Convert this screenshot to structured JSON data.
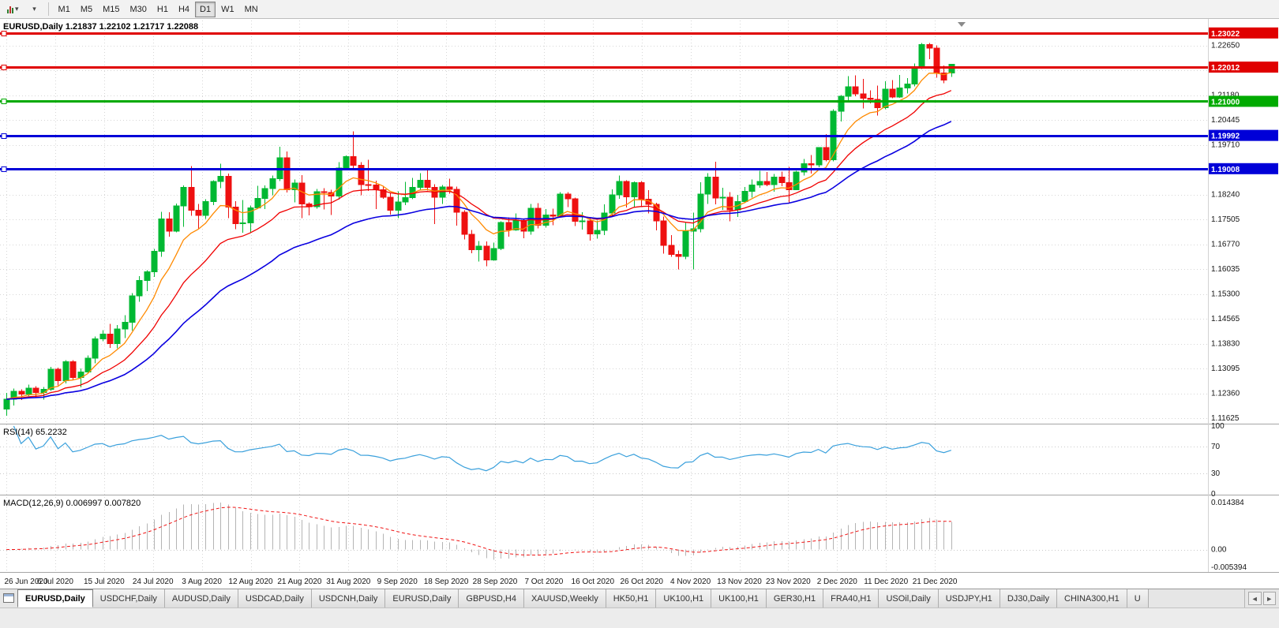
{
  "icons": {
    "dropdown_caret": "▾",
    "tab_scroll_left": "◄",
    "tab_scroll_right": "►",
    "shift_marker": "▼"
  },
  "toolbar": {
    "timeframes": [
      "M1",
      "M5",
      "M15",
      "M30",
      "H1",
      "H4",
      "D1",
      "W1",
      "MN"
    ],
    "active_timeframe": "D1"
  },
  "chart": {
    "title": "EURUSD,Daily 1.21837 1.22102 1.21717 1.22088"
  },
  "chart_data": {
    "type": "candlestick",
    "symbol": "EURUSD",
    "timeframe": "Daily",
    "ohlc_display": {
      "open": "1.21837",
      "high": "1.22102",
      "low": "1.21717",
      "close": "1.22088"
    },
    "y_axis_labels": [
      "1.22650",
      "1.21915",
      "1.21180",
      "1.20445",
      "1.19710",
      "1.18975",
      "1.18240",
      "1.17505",
      "1.16770",
      "1.16035",
      "1.15300",
      "1.14565",
      "1.13830",
      "1.13095",
      "1.12360",
      "1.11625"
    ],
    "x_labels": [
      "26 Jun 2020",
      "6 Jul 2020",
      "15 Jul 2020",
      "24 Jul 2020",
      "3 Aug 2020",
      "12 Aug 2020",
      "21 Aug 2020",
      "31 Aug 2020",
      "9 Sep 2020",
      "18 Sep 2020",
      "28 Sep 2020",
      "7 Oct 2020",
      "16 Oct 2020",
      "26 Oct 2020",
      "4 Nov 2020",
      "13 Nov 2020",
      "23 Nov 2020",
      "2 Dec 2020",
      "11 Dec 2020",
      "21 Dec 2020"
    ],
    "colors": {
      "bull": "#00b832",
      "bear": "#ee1010",
      "grid": "#d6d6d6",
      "axis_text": "#151515"
    },
    "hlines": [
      {
        "price": 1.23022,
        "label": "1.23022",
        "color": "#e00000"
      },
      {
        "price": 1.22012,
        "label": "1.22012",
        "color": "#e00000"
      },
      {
        "price": 1.21,
        "label": "1.21000",
        "color": "#00aa00"
      },
      {
        "price": 1.19992,
        "label": "1.19992",
        "color": "#0000d8"
      },
      {
        "price": 1.19008,
        "label": "1.19008",
        "color": "#0000d8"
      }
    ],
    "indicators": {
      "moving_averages": [
        {
          "name": "ma-fast",
          "type": "ema",
          "period": 8,
          "color": "#ff8a00"
        },
        {
          "name": "ma-mid",
          "type": "ema",
          "period": 17,
          "color": "#f00000"
        },
        {
          "name": "ma-slow",
          "type": "ema",
          "period": 34,
          "color": "#0a00e0"
        }
      ],
      "rsi": {
        "label": "RSI(14) 65.2232",
        "period": 14,
        "current": 65.2232,
        "color": "#3aa0dc",
        "axis_labels": [
          "100",
          "70",
          "30",
          "0"
        ],
        "axis_values": [
          100,
          70,
          30,
          0
        ],
        "level_lines": [
          70,
          30
        ]
      },
      "macd": {
        "label": "MACD(12,26,9) 0.006997 0.007820",
        "fast": 12,
        "slow": 26,
        "signal": 9,
        "current_macd": 0.006997,
        "current_signal": 0.00782,
        "scale_max": 0.014384,
        "scale_min": -0.005394,
        "hist_color": "#b4b4b4",
        "signal_color": "#f01414",
        "axis_labels": [
          "0.014384",
          "0.00",
          "-0.005394"
        ],
        "axis_values": [
          0.014384,
          0,
          -0.005394
        ]
      }
    },
    "candles": [
      [
        1.119,
        1.1238,
        1.117,
        1.1219
      ],
      [
        1.1219,
        1.125,
        1.12,
        1.1242
      ],
      [
        1.1242,
        1.1248,
        1.1217,
        1.1234
      ],
      [
        1.1234,
        1.1262,
        1.1228,
        1.1252
      ],
      [
        1.1252,
        1.1258,
        1.1222,
        1.1239
      ],
      [
        1.1239,
        1.1255,
        1.1218,
        1.1248
      ],
      [
        1.1248,
        1.1315,
        1.1243,
        1.1308
      ],
      [
        1.1308,
        1.1312,
        1.126,
        1.1274
      ],
      [
        1.1274,
        1.1334,
        1.1266,
        1.133
      ],
      [
        1.133,
        1.1335,
        1.1277,
        1.1283
      ],
      [
        1.1283,
        1.131,
        1.1254,
        1.13
      ],
      [
        1.13,
        1.1348,
        1.1296,
        1.134
      ],
      [
        1.134,
        1.1405,
        1.1325,
        1.1397
      ],
      [
        1.1397,
        1.1423,
        1.139,
        1.1411
      ],
      [
        1.1411,
        1.1442,
        1.1371,
        1.1384
      ],
      [
        1.1384,
        1.1438,
        1.137,
        1.1427
      ],
      [
        1.1427,
        1.1468,
        1.14,
        1.1447
      ],
      [
        1.1447,
        1.1533,
        1.1422,
        1.1525
      ],
      [
        1.1525,
        1.1583,
        1.1507,
        1.157
      ],
      [
        1.157,
        1.1601,
        1.1539,
        1.1596
      ],
      [
        1.1596,
        1.1664,
        1.1581,
        1.1656
      ],
      [
        1.1656,
        1.1773,
        1.164,
        1.1752
      ],
      [
        1.1752,
        1.1772,
        1.17,
        1.1716
      ],
      [
        1.1716,
        1.1798,
        1.1712,
        1.1791
      ],
      [
        1.1791,
        1.1851,
        1.1729,
        1.1846
      ],
      [
        1.1846,
        1.1909,
        1.1762,
        1.1778
      ],
      [
        1.1778,
        1.1797,
        1.1723,
        1.1763
      ],
      [
        1.1763,
        1.181,
        1.1752,
        1.1803
      ],
      [
        1.1803,
        1.1866,
        1.1793,
        1.1863
      ],
      [
        1.1863,
        1.1916,
        1.1843,
        1.1878
      ],
      [
        1.1878,
        1.1886,
        1.1754,
        1.1787
      ],
      [
        1.1787,
        1.1805,
        1.1722,
        1.1738
      ],
      [
        1.1738,
        1.1808,
        1.1711,
        1.174
      ],
      [
        1.174,
        1.1792,
        1.171,
        1.1785
      ],
      [
        1.1785,
        1.185,
        1.1782,
        1.1813
      ],
      [
        1.1813,
        1.1851,
        1.1781,
        1.1842
      ],
      [
        1.1842,
        1.188,
        1.1822,
        1.1871
      ],
      [
        1.1871,
        1.1966,
        1.1864,
        1.1933
      ],
      [
        1.1933,
        1.1952,
        1.183,
        1.1839
      ],
      [
        1.1839,
        1.1869,
        1.1801,
        1.1858
      ],
      [
        1.1858,
        1.1882,
        1.1755,
        1.1796
      ],
      [
        1.1796,
        1.1801,
        1.1763,
        1.1788
      ],
      [
        1.1788,
        1.1841,
        1.1783,
        1.1833
      ],
      [
        1.1833,
        1.1843,
        1.178,
        1.183
      ],
      [
        1.183,
        1.1839,
        1.1764,
        1.182
      ],
      [
        1.182,
        1.192,
        1.1809,
        1.1903
      ],
      [
        1.1903,
        1.194,
        1.1897,
        1.1936
      ],
      [
        1.1936,
        1.2011,
        1.1898,
        1.1911
      ],
      [
        1.1911,
        1.192,
        1.1822,
        1.1854
      ],
      [
        1.1854,
        1.1927,
        1.1835,
        1.1852
      ],
      [
        1.1852,
        1.1865,
        1.1781,
        1.1838
      ],
      [
        1.1838,
        1.185,
        1.1812,
        1.1816
      ],
      [
        1.1816,
        1.1828,
        1.1765,
        1.1778
      ],
      [
        1.1778,
        1.1834,
        1.1754,
        1.1802
      ],
      [
        1.1802,
        1.1862,
        1.1793,
        1.1815
      ],
      [
        1.1815,
        1.1874,
        1.181,
        1.1845
      ],
      [
        1.1845,
        1.1888,
        1.1839,
        1.1867
      ],
      [
        1.1867,
        1.19,
        1.1836,
        1.1846
      ],
      [
        1.1846,
        1.1855,
        1.1737,
        1.1816
      ],
      [
        1.1816,
        1.1853,
        1.1797,
        1.1847
      ],
      [
        1.1847,
        1.1871,
        1.1827,
        1.184
      ],
      [
        1.184,
        1.1848,
        1.1732,
        1.1772
      ],
      [
        1.1772,
        1.1778,
        1.1692,
        1.1707
      ],
      [
        1.1707,
        1.172,
        1.1651,
        1.1661
      ],
      [
        1.1661,
        1.1687,
        1.1626,
        1.1672
      ],
      [
        1.1672,
        1.1686,
        1.1612,
        1.1631
      ],
      [
        1.1631,
        1.1682,
        1.1628,
        1.1665
      ],
      [
        1.1665,
        1.1745,
        1.166,
        1.1742
      ],
      [
        1.1742,
        1.1757,
        1.17,
        1.172
      ],
      [
        1.172,
        1.1769,
        1.1717,
        1.1748
      ],
      [
        1.1748,
        1.1752,
        1.1695,
        1.1716
      ],
      [
        1.1716,
        1.1797,
        1.1706,
        1.1784
      ],
      [
        1.1784,
        1.1799,
        1.1724,
        1.1733
      ],
      [
        1.1733,
        1.1781,
        1.1726,
        1.1764
      ],
      [
        1.1764,
        1.1783,
        1.1733,
        1.176
      ],
      [
        1.176,
        1.1831,
        1.1758,
        1.1826
      ],
      [
        1.1826,
        1.1832,
        1.1787,
        1.1812
      ],
      [
        1.1812,
        1.1815,
        1.1731,
        1.1745
      ],
      [
        1.1745,
        1.1772,
        1.1721,
        1.1746
      ],
      [
        1.1746,
        1.1758,
        1.1688,
        1.1708
      ],
      [
        1.1708,
        1.1747,
        1.1694,
        1.1718
      ],
      [
        1.1718,
        1.1795,
        1.1704,
        1.177
      ],
      [
        1.177,
        1.184,
        1.1762,
        1.1823
      ],
      [
        1.1823,
        1.1881,
        1.1812,
        1.1863
      ],
      [
        1.1863,
        1.1866,
        1.1786,
        1.1818
      ],
      [
        1.1818,
        1.1863,
        1.1787,
        1.186
      ],
      [
        1.186,
        1.1864,
        1.1787,
        1.181
      ],
      [
        1.181,
        1.1837,
        1.1768,
        1.1795
      ],
      [
        1.1795,
        1.18,
        1.1718,
        1.1746
      ],
      [
        1.1746,
        1.1759,
        1.165,
        1.1674
      ],
      [
        1.1674,
        1.1704,
        1.164,
        1.1647
      ],
      [
        1.1647,
        1.1659,
        1.1603,
        1.1641
      ],
      [
        1.1641,
        1.174,
        1.1633,
        1.1716
      ],
      [
        1.1716,
        1.1771,
        1.1603,
        1.1723
      ],
      [
        1.1723,
        1.1861,
        1.1712,
        1.1826
      ],
      [
        1.1826,
        1.1888,
        1.1796,
        1.1876
      ],
      [
        1.1876,
        1.1921,
        1.1795,
        1.1814
      ],
      [
        1.1814,
        1.1844,
        1.1779,
        1.1816
      ],
      [
        1.1816,
        1.1832,
        1.1745,
        1.1779
      ],
      [
        1.1779,
        1.1823,
        1.1758,
        1.1804
      ],
      [
        1.1804,
        1.1847,
        1.1799,
        1.1834
      ],
      [
        1.1834,
        1.1869,
        1.1815,
        1.1852
      ],
      [
        1.1852,
        1.1894,
        1.1844,
        1.1863
      ],
      [
        1.1863,
        1.1891,
        1.1849,
        1.1854
      ],
      [
        1.1854,
        1.1885,
        1.1833,
        1.1876
      ],
      [
        1.1876,
        1.1892,
        1.1849,
        1.1859
      ],
      [
        1.1859,
        1.1906,
        1.18,
        1.1839
      ],
      [
        1.1839,
        1.1895,
        1.1837,
        1.1891
      ],
      [
        1.1891,
        1.193,
        1.1881,
        1.1916
      ],
      [
        1.1916,
        1.1941,
        1.1886,
        1.1912
      ],
      [
        1.1912,
        1.1965,
        1.1905,
        1.1963
      ],
      [
        1.1963,
        1.2003,
        1.1923,
        1.1927
      ],
      [
        1.1927,
        1.2076,
        1.1922,
        1.2071
      ],
      [
        1.2071,
        1.2118,
        1.204,
        1.2115
      ],
      [
        1.2115,
        1.2175,
        1.2099,
        1.2143
      ],
      [
        1.2143,
        1.2177,
        1.2115,
        1.2122
      ],
      [
        1.2122,
        1.2166,
        1.2079,
        1.2109
      ],
      [
        1.2109,
        1.2133,
        1.2094,
        1.2106
      ],
      [
        1.2106,
        1.2147,
        1.2058,
        1.2081
      ],
      [
        1.2081,
        1.2159,
        1.2076,
        1.2136
      ],
      [
        1.2136,
        1.2163,
        1.2109,
        1.2113
      ],
      [
        1.2113,
        1.2178,
        1.211,
        1.214
      ],
      [
        1.214,
        1.2169,
        1.2123,
        1.2151
      ],
      [
        1.2151,
        1.2212,
        1.2144,
        1.2199
      ],
      [
        1.2199,
        1.2273,
        1.2195,
        1.2268
      ],
      [
        1.2268,
        1.2272,
        1.2225,
        1.2257
      ],
      [
        1.2257,
        1.2265,
        1.217,
        1.2184
      ],
      [
        1.2184,
        1.2206,
        1.2153,
        1.2163
      ],
      [
        1.2184,
        1.221,
        1.2172,
        1.2209
      ]
    ]
  },
  "tabs": {
    "items": [
      "EURUSD,Daily",
      "USDCHF,Daily",
      "AUDUSD,Daily",
      "USDCAD,Daily",
      "USDCNH,Daily",
      "EURUSD,Daily",
      "GBPUSD,H4",
      "XAUUSD,Weekly",
      "HK50,H1",
      "UK100,H1",
      "UK100,H1",
      "GER30,H1",
      "FRA40,H1",
      "USOil,Daily",
      "USDJPY,H1",
      "DJ30,Daily",
      "CHINA300,H1",
      "U"
    ],
    "active_index": 0
  }
}
